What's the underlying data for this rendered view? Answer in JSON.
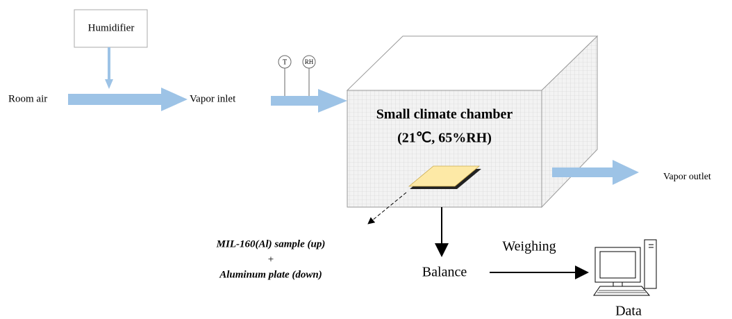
{
  "humidifier": {
    "label": "Humidifier"
  },
  "room_air": {
    "label": "Room air"
  },
  "vapor_inlet": {
    "label": "Vapor inlet"
  },
  "sensors": [
    {
      "label": "T"
    },
    {
      "label": "RH"
    }
  ],
  "chamber": {
    "title": "Small climate chamber",
    "conditions": "(21℃, 65%RH)"
  },
  "vapor_outlet": {
    "label": "Vapor outlet"
  },
  "sample": {
    "lines": [
      "MIL-160(Al) sample (up)",
      "+",
      "Aluminum plate (down)"
    ]
  },
  "balance": {
    "label": "Balance"
  },
  "weighing": {
    "label": "Weighing"
  },
  "data": {
    "label": "Data"
  }
}
